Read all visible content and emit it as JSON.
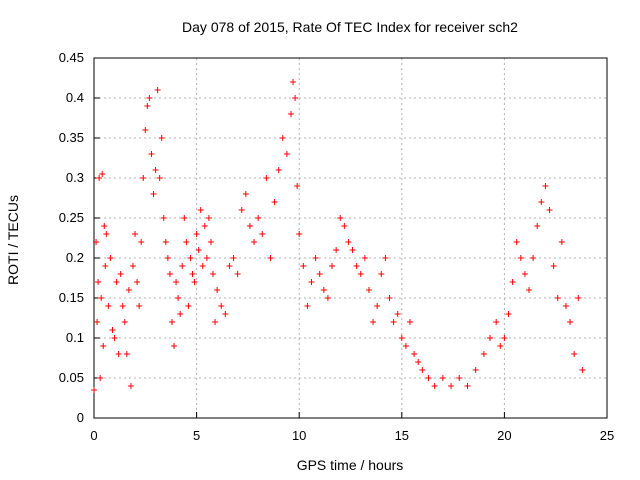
{
  "chart_data": {
    "type": "scatter",
    "title": "Day 078 of 2015, Rate Of TEC Index for receiver sch2",
    "xlabel": "GPS time / hours",
    "ylabel": "ROTI / TECUs",
    "xlim": [
      0,
      25
    ],
    "ylim": [
      0,
      0.45
    ],
    "xticks": [
      0,
      5,
      10,
      15,
      20,
      25
    ],
    "xtick_labels": [
      "0",
      "5",
      "10",
      "15",
      "20",
      "25"
    ],
    "yticks": [
      0,
      0.05,
      0.1,
      0.15,
      0.2,
      0.25,
      0.3,
      0.35,
      0.4,
      0.45
    ],
    "ytick_labels": [
      "0",
      "0.05",
      "0.1",
      "0.15",
      "0.2",
      "0.25",
      "0.3",
      "0.35",
      "0.4",
      "0.45"
    ],
    "grid": true,
    "legend": "none",
    "marker": "plus",
    "color": "#ff0000",
    "series": [
      {
        "points": [
          [
            0.0,
            0.035
          ],
          [
            0.1,
            0.22
          ],
          [
            0.15,
            0.12
          ],
          [
            0.2,
            0.17
          ],
          [
            0.25,
            0.3
          ],
          [
            0.3,
            0.05
          ],
          [
            0.35,
            0.15
          ],
          [
            0.4,
            0.305
          ],
          [
            0.45,
            0.09
          ],
          [
            0.5,
            0.24
          ],
          [
            0.55,
            0.19
          ],
          [
            0.6,
            0.23
          ],
          [
            0.7,
            0.14
          ],
          [
            0.8,
            0.2
          ],
          [
            0.9,
            0.11
          ],
          [
            1.0,
            0.1
          ],
          [
            1.1,
            0.17
          ],
          [
            1.2,
            0.08
          ],
          [
            1.3,
            0.18
          ],
          [
            1.4,
            0.14
          ],
          [
            1.5,
            0.12
          ],
          [
            1.6,
            0.08
          ],
          [
            1.7,
            0.16
          ],
          [
            1.8,
            0.04
          ],
          [
            1.9,
            0.19
          ],
          [
            2.0,
            0.23
          ],
          [
            2.1,
            0.17
          ],
          [
            2.2,
            0.14
          ],
          [
            2.3,
            0.22
          ],
          [
            2.4,
            0.3
          ],
          [
            2.5,
            0.36
          ],
          [
            2.6,
            0.39
          ],
          [
            2.7,
            0.4
          ],
          [
            2.8,
            0.33
          ],
          [
            2.9,
            0.28
          ],
          [
            3.0,
            0.31
          ],
          [
            3.1,
            0.41
          ],
          [
            3.2,
            0.3
          ],
          [
            3.3,
            0.35
          ],
          [
            3.4,
            0.25
          ],
          [
            3.5,
            0.22
          ],
          [
            3.6,
            0.2
          ],
          [
            3.7,
            0.18
          ],
          [
            3.8,
            0.12
          ],
          [
            3.9,
            0.09
          ],
          [
            4.0,
            0.17
          ],
          [
            4.1,
            0.15
          ],
          [
            4.2,
            0.13
          ],
          [
            4.3,
            0.19
          ],
          [
            4.4,
            0.25
          ],
          [
            4.5,
            0.22
          ],
          [
            4.6,
            0.14
          ],
          [
            4.7,
            0.2
          ],
          [
            4.8,
            0.18
          ],
          [
            4.9,
            0.17
          ],
          [
            5.0,
            0.23
          ],
          [
            5.1,
            0.21
          ],
          [
            5.2,
            0.26
          ],
          [
            5.3,
            0.19
          ],
          [
            5.4,
            0.24
          ],
          [
            5.5,
            0.2
          ],
          [
            5.6,
            0.25
          ],
          [
            5.7,
            0.22
          ],
          [
            5.8,
            0.18
          ],
          [
            5.9,
            0.12
          ],
          [
            6.0,
            0.16
          ],
          [
            6.2,
            0.14
          ],
          [
            6.4,
            0.13
          ],
          [
            6.6,
            0.19
          ],
          [
            6.8,
            0.2
          ],
          [
            7.0,
            0.18
          ],
          [
            7.2,
            0.26
          ],
          [
            7.4,
            0.28
          ],
          [
            7.6,
            0.24
          ],
          [
            7.8,
            0.22
          ],
          [
            8.0,
            0.25
          ],
          [
            8.2,
            0.23
          ],
          [
            8.4,
            0.3
          ],
          [
            8.6,
            0.2
          ],
          [
            8.8,
            0.27
          ],
          [
            9.0,
            0.31
          ],
          [
            9.2,
            0.35
          ],
          [
            9.4,
            0.33
          ],
          [
            9.6,
            0.38
          ],
          [
            9.7,
            0.42
          ],
          [
            9.8,
            0.4
          ],
          [
            9.9,
            0.29
          ],
          [
            10.0,
            0.23
          ],
          [
            10.2,
            0.19
          ],
          [
            10.4,
            0.14
          ],
          [
            10.6,
            0.17
          ],
          [
            10.8,
            0.2
          ],
          [
            11.0,
            0.18
          ],
          [
            11.2,
            0.16
          ],
          [
            11.4,
            0.15
          ],
          [
            11.6,
            0.19
          ],
          [
            11.8,
            0.21
          ],
          [
            12.0,
            0.25
          ],
          [
            12.2,
            0.24
          ],
          [
            12.4,
            0.22
          ],
          [
            12.6,
            0.21
          ],
          [
            12.8,
            0.19
          ],
          [
            13.0,
            0.18
          ],
          [
            13.2,
            0.2
          ],
          [
            13.4,
            0.16
          ],
          [
            13.6,
            0.12
          ],
          [
            13.8,
            0.14
          ],
          [
            14.0,
            0.18
          ],
          [
            14.2,
            0.2
          ],
          [
            14.4,
            0.15
          ],
          [
            14.6,
            0.12
          ],
          [
            14.8,
            0.13
          ],
          [
            15.0,
            0.1
          ],
          [
            15.2,
            0.09
          ],
          [
            15.4,
            0.12
          ],
          [
            15.6,
            0.08
          ],
          [
            15.8,
            0.07
          ],
          [
            16.0,
            0.06
          ],
          [
            16.3,
            0.05
          ],
          [
            16.6,
            0.04
          ],
          [
            17.0,
            0.05
          ],
          [
            17.4,
            0.04
          ],
          [
            17.8,
            0.05
          ],
          [
            18.2,
            0.04
          ],
          [
            18.6,
            0.06
          ],
          [
            19.0,
            0.08
          ],
          [
            19.3,
            0.1
          ],
          [
            19.6,
            0.12
          ],
          [
            19.8,
            0.09
          ],
          [
            20.0,
            0.1
          ],
          [
            20.2,
            0.13
          ],
          [
            20.4,
            0.17
          ],
          [
            20.6,
            0.22
          ],
          [
            20.8,
            0.2
          ],
          [
            21.0,
            0.18
          ],
          [
            21.2,
            0.16
          ],
          [
            21.4,
            0.2
          ],
          [
            21.6,
            0.24
          ],
          [
            21.8,
            0.27
          ],
          [
            22.0,
            0.29
          ],
          [
            22.2,
            0.26
          ],
          [
            22.4,
            0.19
          ],
          [
            22.6,
            0.15
          ],
          [
            22.8,
            0.22
          ],
          [
            23.0,
            0.14
          ],
          [
            23.2,
            0.12
          ],
          [
            23.4,
            0.08
          ],
          [
            23.6,
            0.15
          ],
          [
            23.8,
            0.06
          ]
        ]
      }
    ]
  }
}
